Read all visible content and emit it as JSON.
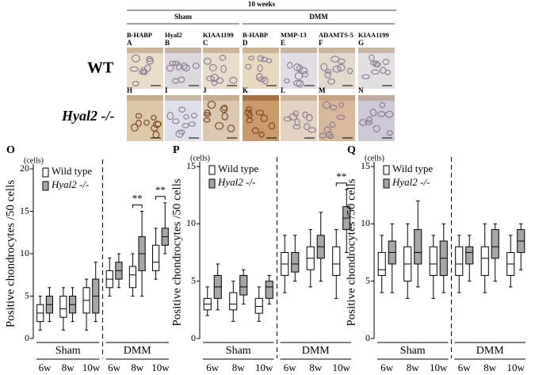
{
  "figure": {
    "time_label": "10 weeks",
    "groups": [
      {
        "label": "Sham"
      },
      {
        "label": "DMM"
      }
    ],
    "stains": [
      "B-HABP",
      "Hyal2",
      "KIAA1199",
      "B-HABP",
      "MMP-13",
      "ADAMTS-5",
      "KIAA1199"
    ],
    "rows": [
      "WT",
      "Hyal2 -/-"
    ],
    "panels": [
      [
        "A",
        "B",
        "C",
        "D",
        "E",
        "F",
        "G"
      ],
      [
        "H",
        "I",
        "J",
        "K",
        "L",
        "M",
        "N"
      ]
    ]
  },
  "chart_data": [
    {
      "type": "box",
      "panel": "O",
      "unit_label": "(cells)",
      "ylabel": "Positive chondrocytes /50 cells",
      "ylim": [
        0,
        20
      ],
      "yticks": [
        0,
        5,
        10,
        15,
        20
      ],
      "groups": [
        {
          "label": "Sham",
          "categories": [
            "6w",
            "8w",
            "10w"
          ]
        },
        {
          "label": "DMM",
          "categories": [
            "6w",
            "8w",
            "10w"
          ]
        }
      ],
      "series": [
        {
          "name": "Wild type",
          "color": "#ffffff",
          "boxes": [
            {
              "min": 1,
              "q1": 2,
              "median": 3,
              "q3": 4,
              "max": 5
            },
            {
              "min": 1,
              "q1": 2.5,
              "median": 3.5,
              "q3": 5,
              "max": 6
            },
            {
              "min": 1,
              "q1": 3,
              "median": 4.5,
              "q3": 6,
              "max": 7
            },
            {
              "min": 5,
              "q1": 6,
              "median": 7,
              "q3": 8,
              "max": 9.5
            },
            {
              "min": 5,
              "q1": 6,
              "median": 7.5,
              "q3": 8.5,
              "max": 10
            },
            {
              "min": 7,
              "q1": 8,
              "median": 9,
              "q3": 11,
              "max": 13
            }
          ]
        },
        {
          "name": "Hyal2 -/-",
          "color": "#a6a6a6",
          "boxes": [
            {
              "min": 2,
              "q1": 3,
              "median": 4,
              "q3": 5,
              "max": 6
            },
            {
              "min": 2,
              "q1": 3,
              "median": 4,
              "q3": 5,
              "max": 6
            },
            {
              "min": 2,
              "q1": 3,
              "median": 5,
              "q3": 7,
              "max": 9
            },
            {
              "min": 6,
              "q1": 7,
              "median": 8,
              "q3": 9,
              "max": 10
            },
            {
              "min": 5,
              "q1": 8,
              "median": 10,
              "q3": 12,
              "max": 15
            },
            {
              "min": 10,
              "q1": 11,
              "median": 12,
              "q3": 13,
              "max": 16
            }
          ]
        }
      ],
      "annotations": [
        {
          "text": "**",
          "category_index": 4
        },
        {
          "text": "**",
          "category_index": 5
        }
      ]
    },
    {
      "type": "box",
      "panel": "P",
      "unit_label": "(cells)",
      "ylabel": "Positive chondrocytes /50 cells",
      "ylim": [
        0,
        15
      ],
      "yticks": [
        0,
        5,
        10,
        15
      ],
      "groups": [
        {
          "label": "Sham",
          "categories": [
            "6w",
            "8w",
            "10w"
          ]
        },
        {
          "label": "DMM",
          "categories": [
            "6w",
            "8w",
            "10w"
          ]
        }
      ],
      "series": [
        {
          "name": "Wild type",
          "color": "#ffffff",
          "boxes": [
            {
              "min": 2,
              "q1": 2.5,
              "median": 3,
              "q3": 3.5,
              "max": 4.5
            },
            {
              "min": 1.5,
              "q1": 2.5,
              "median": 3,
              "q3": 4,
              "max": 5
            },
            {
              "min": 1.5,
              "q1": 2.2,
              "median": 2.8,
              "q3": 3.5,
              "max": 4.5
            },
            {
              "min": 4,
              "q1": 5.5,
              "median": 6.5,
              "q3": 7.5,
              "max": 9
            },
            {
              "min": 4.5,
              "q1": 6,
              "median": 7,
              "q3": 8,
              "max": 9.5
            },
            {
              "min": 3.5,
              "q1": 5.5,
              "median": 6.5,
              "q3": 8,
              "max": 9.5
            }
          ]
        },
        {
          "name": "Hyal2 -/-",
          "color": "#a6a6a6",
          "boxes": [
            {
              "min": 2.5,
              "q1": 3.5,
              "median": 4.5,
              "q3": 5.5,
              "max": 6.5
            },
            {
              "min": 3,
              "q1": 3.8,
              "median": 4.5,
              "q3": 5.5,
              "max": 6
            },
            {
              "min": 3,
              "q1": 3.5,
              "median": 4.5,
              "q3": 5,
              "max": 5.5
            },
            {
              "min": 5,
              "q1": 5.8,
              "median": 6.5,
              "q3": 7.5,
              "max": 9
            },
            {
              "min": 5,
              "q1": 7,
              "median": 8,
              "q3": 9,
              "max": 11
            },
            {
              "min": 7.5,
              "q1": 9.5,
              "median": 10.5,
              "q3": 11.5,
              "max": 13
            }
          ]
        }
      ],
      "annotations": [
        {
          "text": "**",
          "category_index": 5
        }
      ]
    },
    {
      "type": "box",
      "panel": "Q",
      "unit_label": "(cells)",
      "ylabel": "Positive chondrocytes /50 cells",
      "ylim": [
        0,
        15
      ],
      "yticks": [
        0,
        5,
        10,
        15
      ],
      "groups": [
        {
          "label": "Sham",
          "categories": [
            "6w",
            "8w",
            "10w"
          ]
        },
        {
          "label": "DMM",
          "categories": [
            "6w",
            "8w",
            "10w"
          ]
        }
      ],
      "series": [
        {
          "name": "Wild type",
          "color": "#ffffff",
          "boxes": [
            {
              "min": 4,
              "q1": 5.5,
              "median": 6,
              "q3": 7.5,
              "max": 9
            },
            {
              "min": 3.5,
              "q1": 5,
              "median": 6.5,
              "q3": 8,
              "max": 10
            },
            {
              "min": 3.5,
              "q1": 5.5,
              "median": 6.5,
              "q3": 8,
              "max": 9
            },
            {
              "min": 4,
              "q1": 5.5,
              "median": 6.5,
              "q3": 8,
              "max": 9
            },
            {
              "min": 4,
              "q1": 5.5,
              "median": 7,
              "q3": 8,
              "max": 10
            },
            {
              "min": 4.5,
              "q1": 5.5,
              "median": 6.5,
              "q3": 7.5,
              "max": 9
            }
          ]
        },
        {
          "name": "Hyal2 -/-",
          "color": "#a6a6a6",
          "boxes": [
            {
              "min": 4,
              "q1": 6.5,
              "median": 7.5,
              "q3": 8.5,
              "max": 10
            },
            {
              "min": 4.5,
              "q1": 6.5,
              "median": 7.5,
              "q3": 9.5,
              "max": 12
            },
            {
              "min": 4,
              "q1": 5.5,
              "median": 7,
              "q3": 8.5,
              "max": 10
            },
            {
              "min": 5,
              "q1": 6.5,
              "median": 7.5,
              "q3": 8,
              "max": 9
            },
            {
              "min": 5,
              "q1": 7,
              "median": 8,
              "q3": 9.5,
              "max": 10
            },
            {
              "min": 6,
              "q1": 7.5,
              "median": 8.5,
              "q3": 9.5,
              "max": 10
            }
          ]
        }
      ],
      "annotations": []
    }
  ]
}
